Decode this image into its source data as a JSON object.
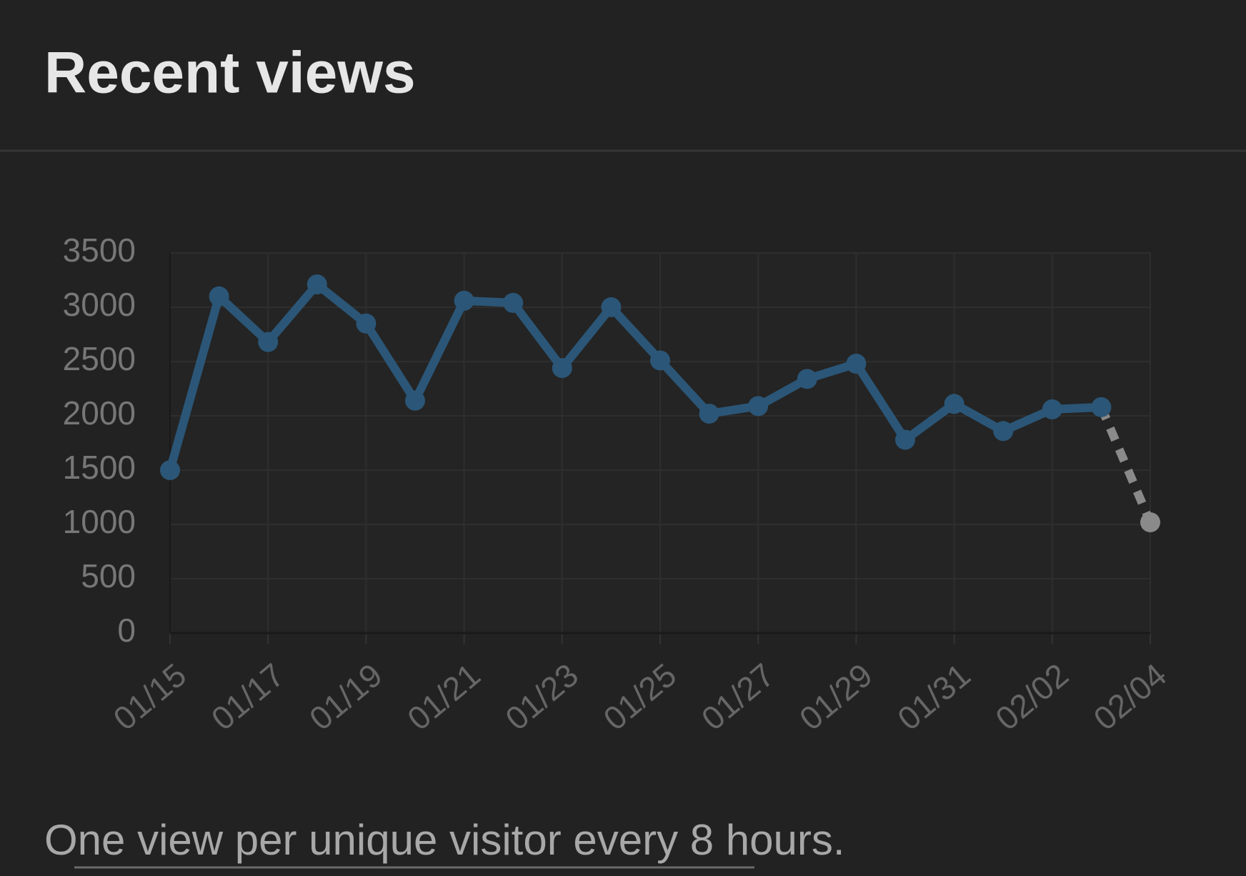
{
  "chart_data": {
    "type": "line",
    "title": "Recent views",
    "footnote": "One view per unique visitor every 8 hours.",
    "categories": [
      "01/15",
      null,
      "01/17",
      null,
      "01/19",
      null,
      "01/21",
      null,
      "01/23",
      null,
      "01/25",
      null,
      "01/27",
      null,
      "01/29",
      null,
      "01/31",
      null,
      "02/02",
      null,
      "02/04"
    ],
    "values": [
      1500,
      3100,
      2680,
      3210,
      2850,
      2140,
      3060,
      3040,
      2440,
      3000,
      2510,
      2020,
      2090,
      2340,
      2480,
      1780,
      2110,
      1860,
      2060,
      2080,
      1020
    ],
    "color": "#2b5677",
    "last_segment_color": "#8a8a8a",
    "last_segment_dashed": true,
    "ylim": [
      0,
      3500
    ],
    "yticks": [
      0,
      500,
      1000,
      1500,
      2000,
      2500,
      3000,
      3500
    ],
    "grid": true
  }
}
